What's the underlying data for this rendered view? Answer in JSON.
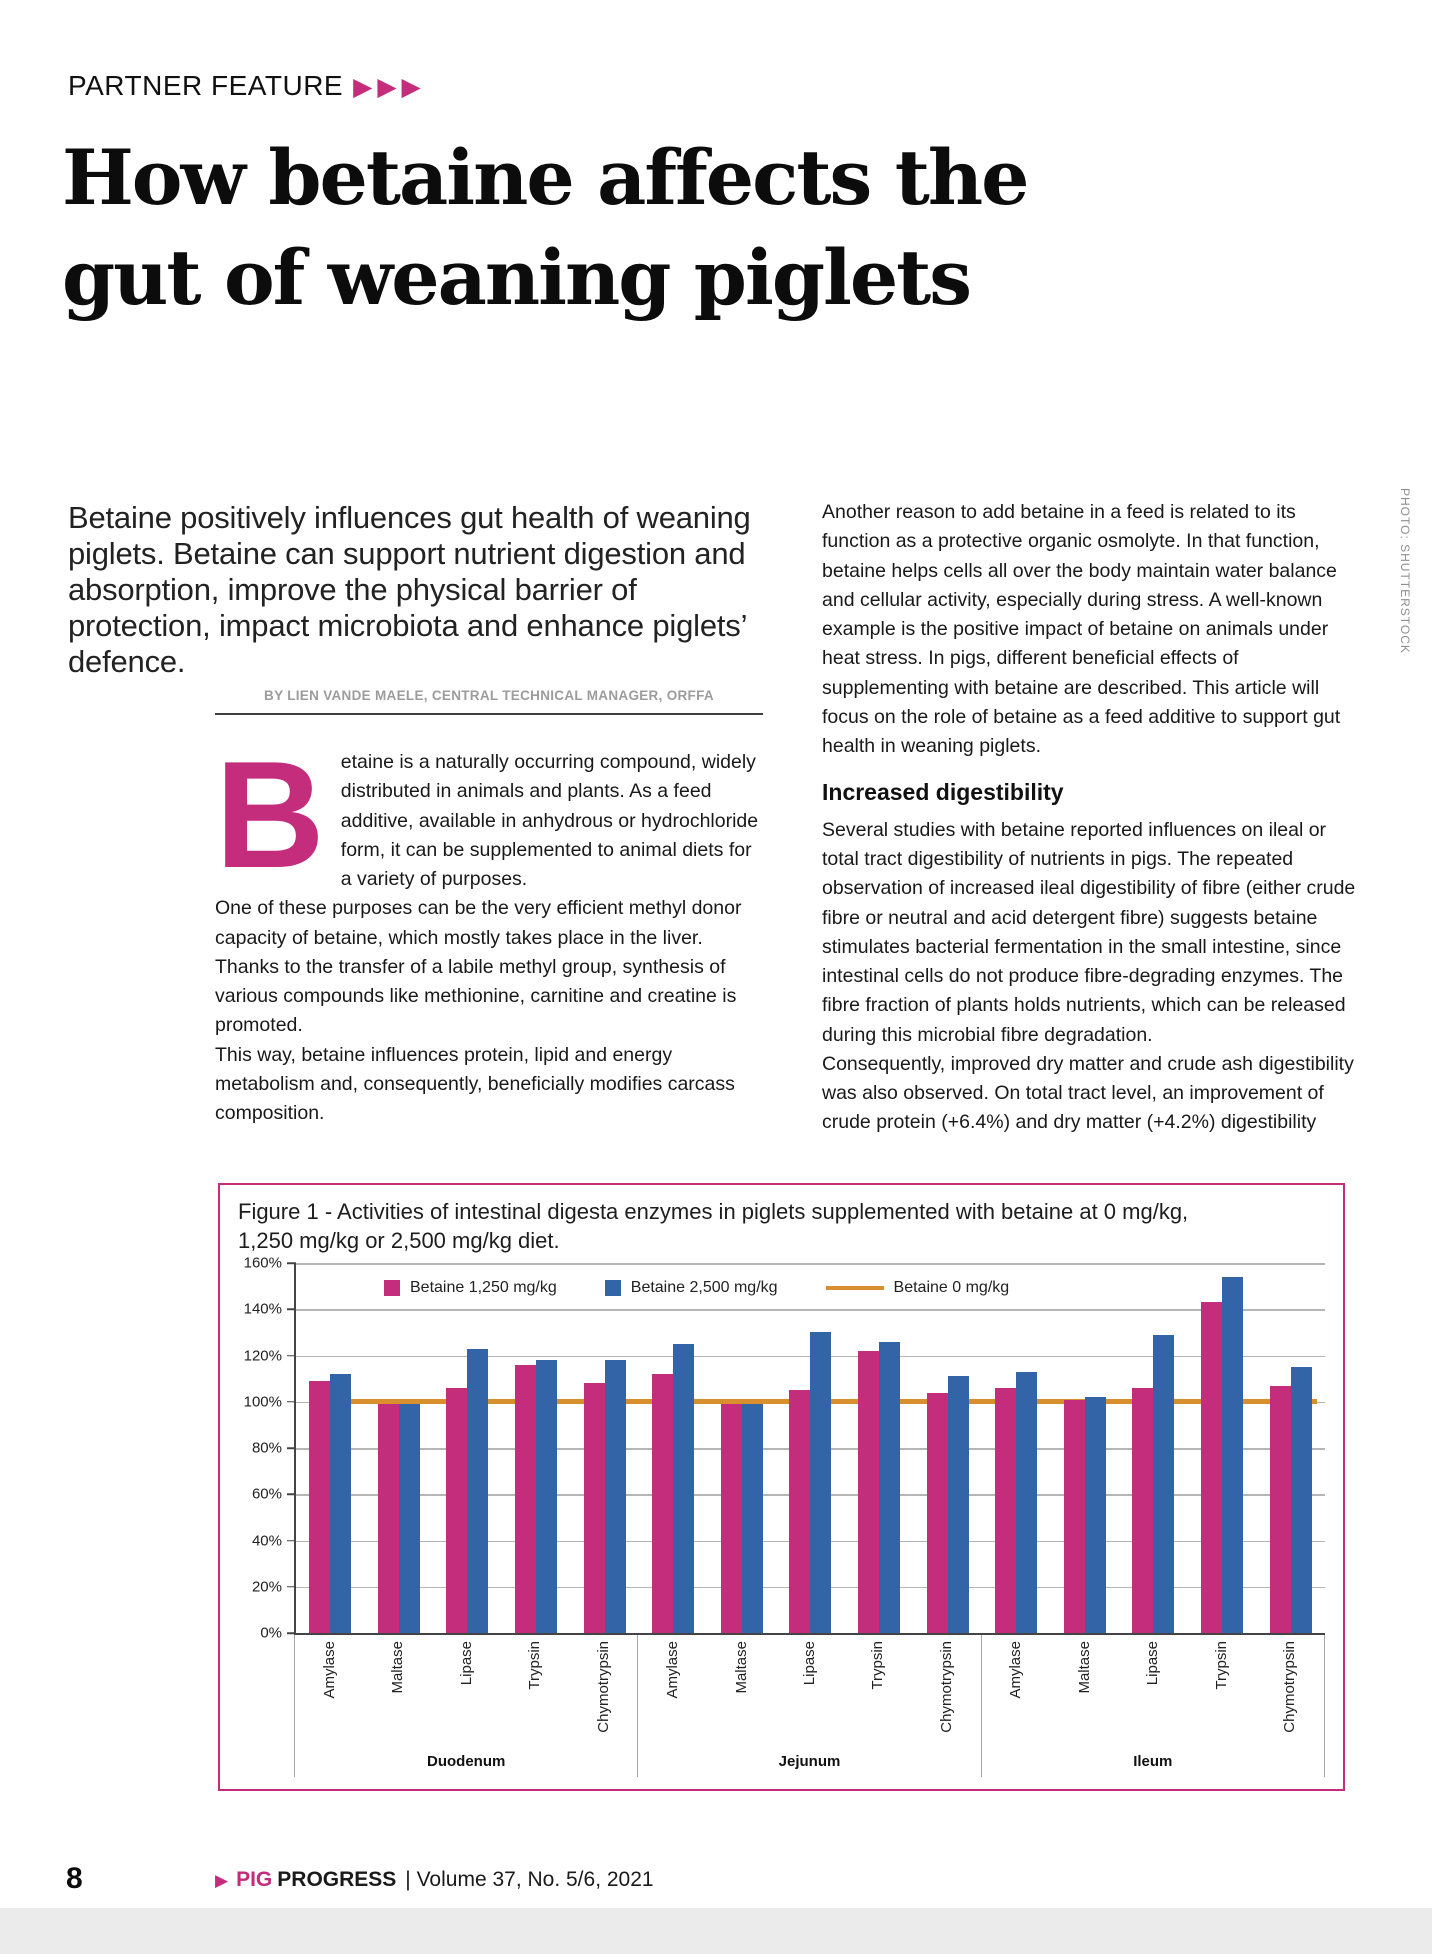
{
  "page": {
    "kicker": "PARTNER FEATURE",
    "kicker_arrows": "▶▶▶",
    "headline_line1": "How betaine affects the",
    "headline_line2": "gut of weaning piglets",
    "intro": "Betaine positively influences gut health of weaning piglets. Betaine can support nutrient digestion and absorption, improve the physical barrier of protection, impact microbiota and enhance piglets’ defence.",
    "byline": "BY LIEN VANDE MAELE, CENTRAL TECHNICAL MANAGER, ORFFA",
    "left_column": {
      "dropcap": "B",
      "para1": "etaine is a naturally occurring compound, widely distributed in animals and plants. As a feed additive, available in anhydrous or hydrochloride form, it can be supplemented to animal diets for a variety of purposes.",
      "para2": "One of these purposes can be the very efficient methyl donor capacity of betaine, which mostly takes place in the liver. Thanks to the transfer of a labile methyl group, synthesis of various compounds like methionine, carnitine and creatine is promoted.",
      "para3": "This way, betaine influences protein, lipid and energy metabolism and, consequently, beneficially modifies carcass composition."
    },
    "right_column": {
      "para1": "Another reason to add betaine in a feed is related to its function as a protective organic osmolyte. In that function, betaine helps cells all over the body maintain water balance and cellular activity, especially during stress. A well-known example is the positive impact of betaine on animals under heat stress. In pigs, different beneficial effects of supplementing with betaine are described. This article will focus on the role of betaine as a feed additive to support gut health in weaning piglets.",
      "heading": "Increased digestibility",
      "para2": "Several studies with betaine reported influences on ileal or total tract digestibility of nutrients in pigs. The repeated observation of increased ileal digestibility of fibre (either crude fibre or neutral and acid detergent fibre) suggests betaine stimulates bacterial fermentation in the small intestine, since intestinal cells do not produce fibre-degrading enzymes. The fibre fraction of plants holds nutrients, which can be released during this microbial fibre degradation.",
      "para3": "Consequently, improved dry matter and crude ash digestibility was also observed. On total tract level, an improvement of crude protein (+6.4%) and dry matter (+4.2%) digestibility"
    },
    "photo_credit": "PHOTO: SHUTTERSTOCK",
    "footer": {
      "page_number": "8",
      "brand_arrow": "▶",
      "brand_pig": "PIG",
      "brand_progress": "PROGRESS",
      "issue": "| Volume 37, No. 5/6, 2021"
    }
  },
  "figure": {
    "title": "Figure 1 - Activities of intestinal digesta enzymes in piglets supplemented with betaine at 0 mg/kg, 1,250 mg/kg or 2,500 mg/kg diet."
  },
  "colors": {
    "accent_pink": "#c42d7c",
    "bar_blue": "#3364a8",
    "line_orange": "#d8902f"
  },
  "chart_data": {
    "type": "bar",
    "title": "Activities of intestinal digesta enzymes in piglets supplemented with betaine at 0 mg/kg, 1,250 mg/kg or 2,500 mg/kg diet",
    "sections": [
      "Duodenum",
      "Jejunum",
      "Ileum"
    ],
    "categories_per_section": [
      "Amylase",
      "Maltase",
      "Lipase",
      "Trypsin",
      "Chymotrypsin"
    ],
    "categories": [
      "Amylase",
      "Maltase",
      "Lipase",
      "Trypsin",
      "Chymotrypsin",
      "Amylase",
      "Maltase",
      "Lipase",
      "Trypsin",
      "Chymotrypsin",
      "Amylase",
      "Maltase",
      "Lipase",
      "Trypsin",
      "Chymotrypsin"
    ],
    "series": [
      {
        "name": "Betaine 1,250 mg/kg",
        "color": "#c42d7c",
        "values": [
          109,
          99,
          106,
          116,
          108,
          112,
          99,
          105,
          122,
          104,
          106,
          101,
          106,
          143,
          107
        ]
      },
      {
        "name": "Betaine 2,500 mg/kg",
        "color": "#3364a8",
        "values": [
          112,
          99,
          123,
          118,
          118,
          125,
          99,
          130,
          126,
          111,
          113,
          102,
          129,
          154,
          115
        ]
      }
    ],
    "reference_line": {
      "name": "Betaine 0 mg/kg",
      "value": 100,
      "color": "#d8902f"
    },
    "ylabel": "",
    "ylim": [
      0,
      160
    ],
    "ytick_step": 20,
    "ytick_format": "percent",
    "grid": true,
    "legend_position": "top"
  }
}
